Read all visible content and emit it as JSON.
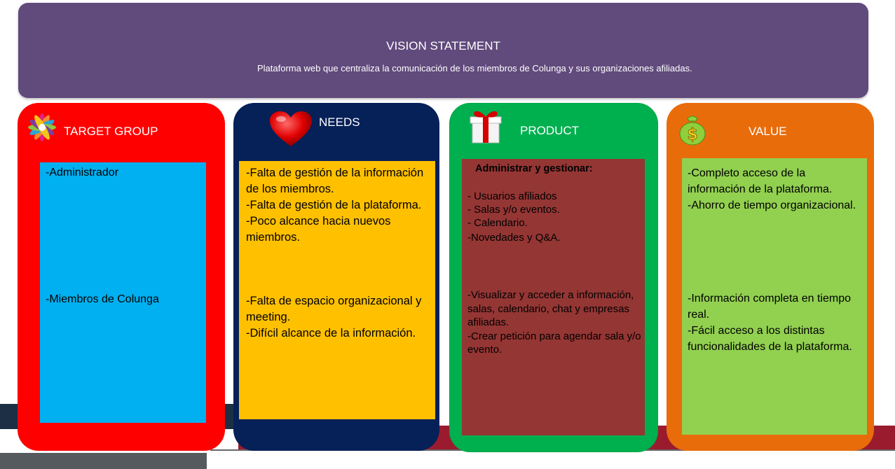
{
  "vision": {
    "title": "VISION STATEMENT",
    "text": "Plataforma web que centraliza la comunicación de los miembros de Colunga y sus organizaciones afiliadas."
  },
  "target_group": {
    "title": "TARGET GROUP",
    "icon": "flower-icon",
    "item1": "-Administrador",
    "item2": "-Miembros de Colunga"
  },
  "needs": {
    "title": "NEEDS",
    "icon": "heart-icon",
    "block1": "-Falta de gestión de la información de los miembros.\n-Falta de gestión de la plataforma.\n-Poco alcance hacia nuevos miembros.",
    "block2": "-Falta de espacio organizacional y meeting.\n-Difícil alcance de la información."
  },
  "product": {
    "title": "PRODUCT",
    "icon": "gift-icon",
    "heading": "Administrar y gestionar:",
    "items": [
      "- Usuarios afiliados",
      "- Salas y/o eventos.",
      "- Calendario.",
      "-Novedades y Q&A."
    ],
    "block2": "-Visualizar y acceder a información, salas, calendario, chat y empresas afiliadas.\n-Crear petición para agendar sala y/o evento."
  },
  "value": {
    "title": "VALUE",
    "icon": "dollar-icon",
    "block1": "-Completo acceso de la información de la plataforma.\n-Ahorro de tiempo organizacional.",
    "block2": "-Información completa en tiempo real.\n-Fácil acceso a los distintas funcionalidades de la plataforma."
  },
  "colors": {
    "vision": "#614a7c",
    "target": "#fe0000",
    "needs": "#062058",
    "product": "#00b04f",
    "value": "#e96c0b"
  }
}
